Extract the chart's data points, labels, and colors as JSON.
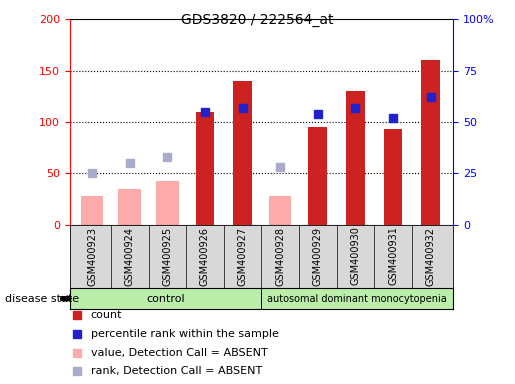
{
  "title": "GDS3820 / 222564_at",
  "samples": [
    "GSM400923",
    "GSM400924",
    "GSM400925",
    "GSM400926",
    "GSM400927",
    "GSM400928",
    "GSM400929",
    "GSM400930",
    "GSM400931",
    "GSM400932"
  ],
  "count": [
    null,
    null,
    null,
    110,
    140,
    null,
    95,
    130,
    93,
    160
  ],
  "value_absent": [
    28,
    35,
    42,
    null,
    null,
    28,
    null,
    null,
    null,
    null
  ],
  "pct_rank": [
    null,
    null,
    null,
    55,
    57,
    null,
    54,
    57,
    52,
    62
  ],
  "rank_absent": [
    25,
    30,
    33,
    null,
    null,
    28,
    null,
    null,
    null,
    null
  ],
  "ylim_left": [
    0,
    200
  ],
  "ylim_right": [
    0,
    100
  ],
  "yticks_left": [
    0,
    50,
    100,
    150,
    200
  ],
  "yticks_right": [
    0,
    25,
    50,
    75,
    100
  ],
  "ytick_labels_right": [
    "0",
    "25",
    "50",
    "75",
    "100%"
  ],
  "bar_color_count": "#cc2222",
  "bar_color_absent": "#ffaaaa",
  "dot_color_pct": "#2222cc",
  "dot_color_rank_absent": "#aaaacc",
  "control_color": "#bbeeaa",
  "disease_color": "#bbeeaa",
  "bg_color": "#d8d8d8",
  "bar_width": 0.5,
  "pink_bar_width": 0.6,
  "legend_items": [
    {
      "color": "#cc2222",
      "label": "count"
    },
    {
      "color": "#2222cc",
      "label": "percentile rank within the sample"
    },
    {
      "color": "#ffaaaa",
      "label": "value, Detection Call = ABSENT"
    },
    {
      "color": "#aaaacc",
      "label": "rank, Detection Call = ABSENT"
    }
  ]
}
